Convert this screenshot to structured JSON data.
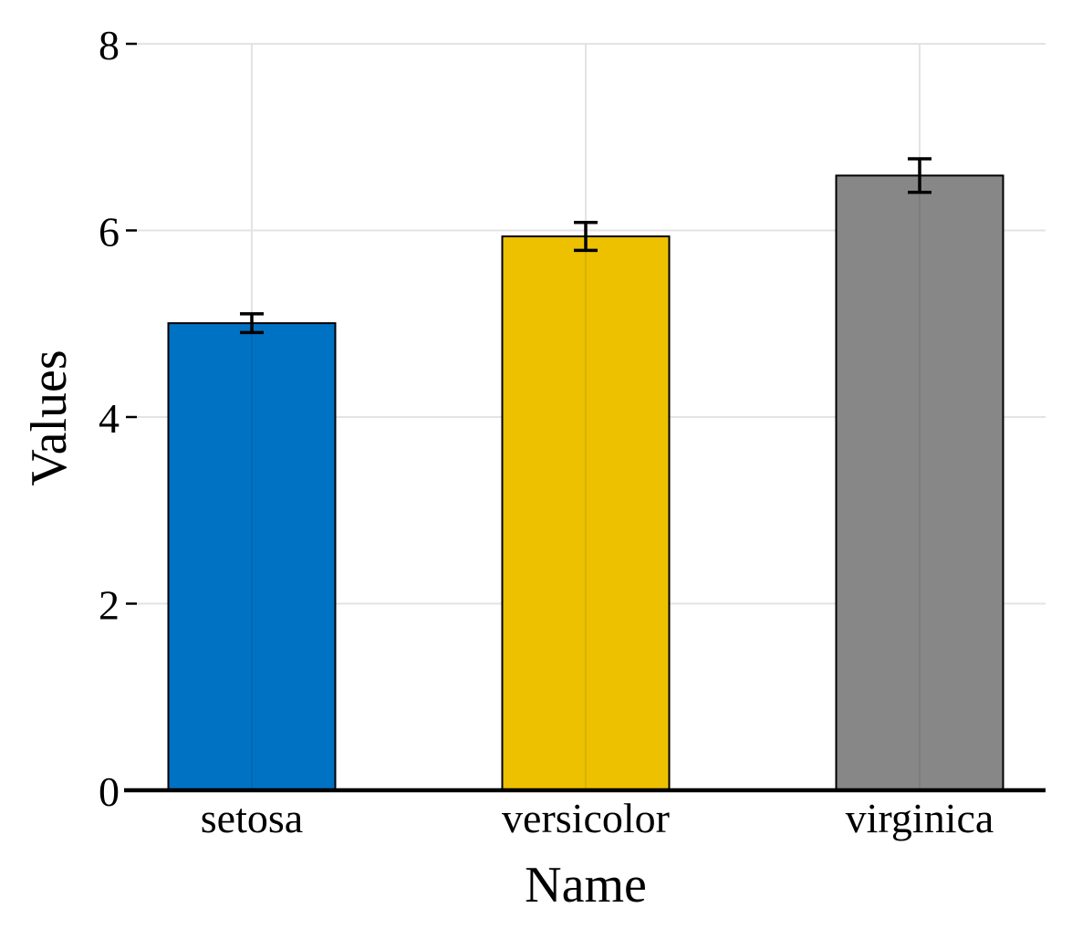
{
  "chart_data": {
    "type": "bar",
    "title": "",
    "xlabel": "Name",
    "ylabel": "Values",
    "categories": [
      "setosa",
      "versicolor",
      "virginica"
    ],
    "values": [
      5.006,
      5.936,
      6.588
    ],
    "error": [
      0.1,
      0.15,
      0.18
    ],
    "colors": [
      "#0072C4",
      "#EDC100",
      "#878787"
    ],
    "ylim": [
      0,
      8
    ],
    "yticks": [
      0,
      2,
      4,
      6,
      8
    ],
    "grid": true,
    "legend": "none"
  }
}
